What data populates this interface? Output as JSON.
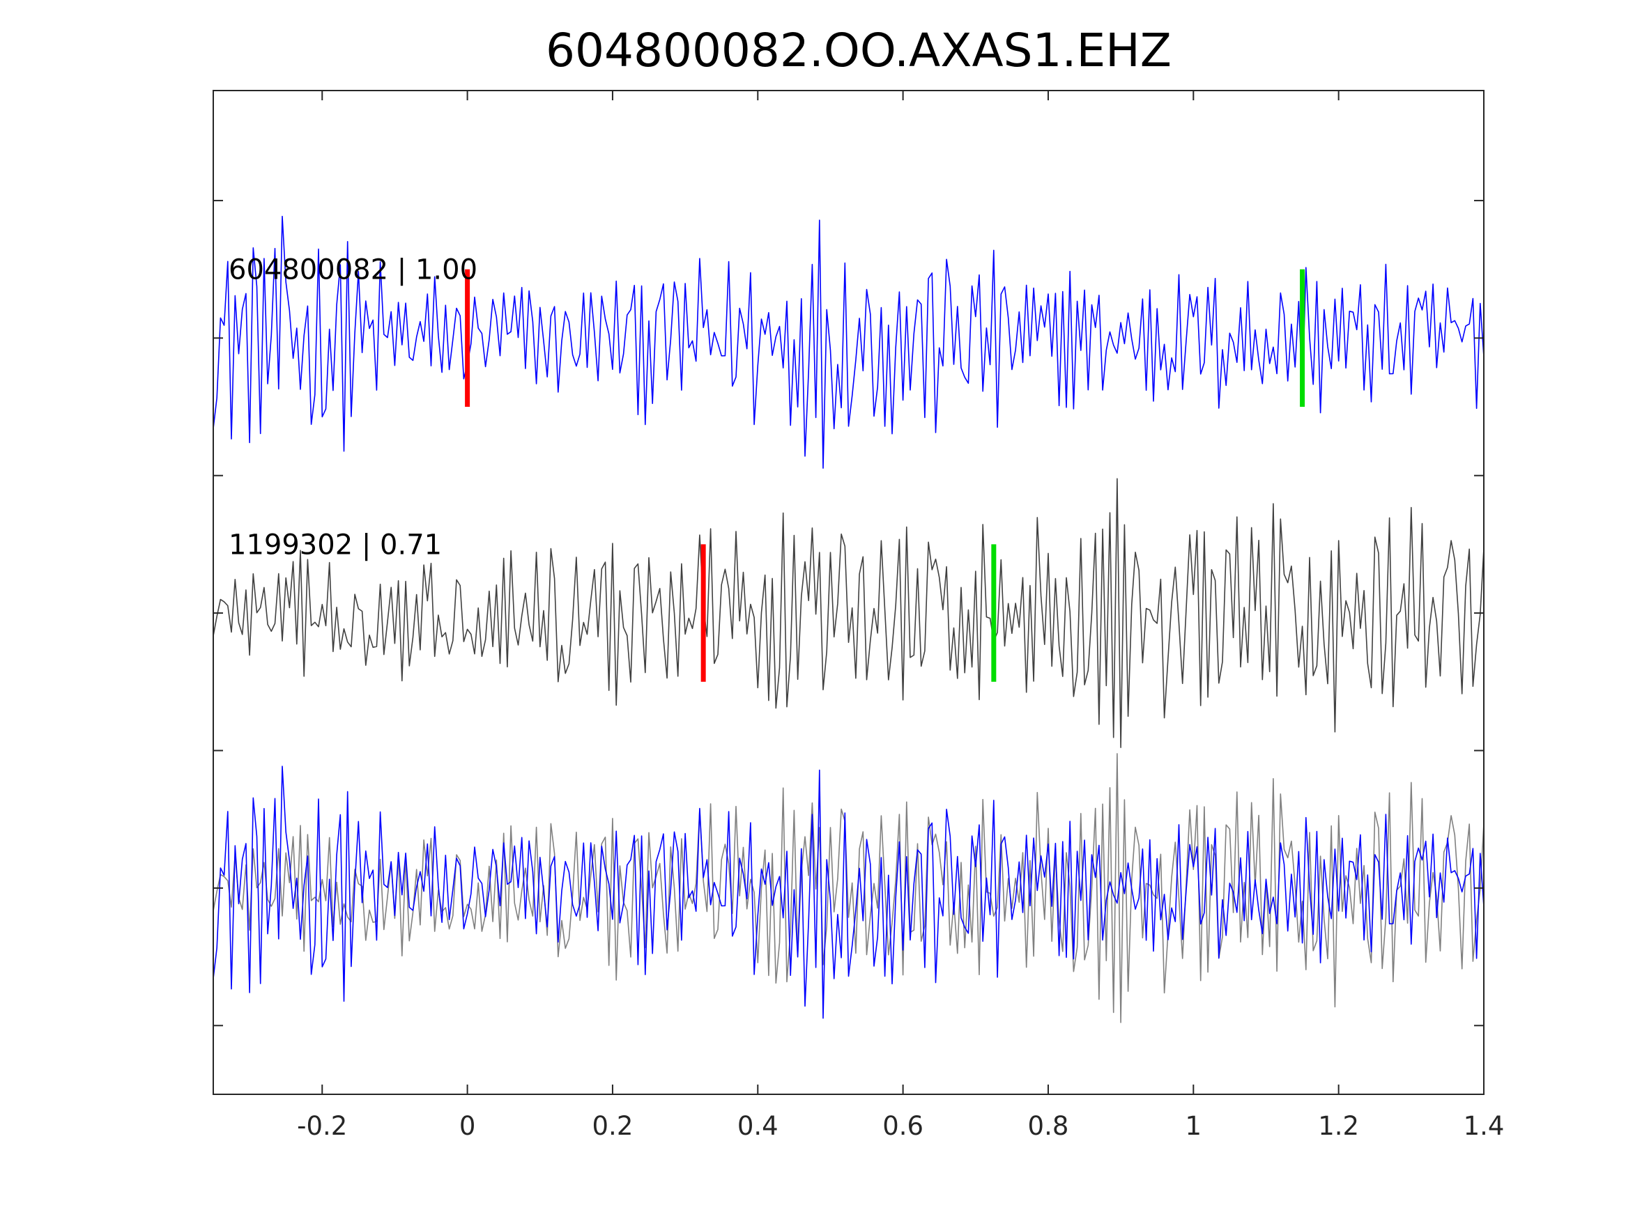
{
  "chart_data": {
    "type": "line",
    "title": "604800082.OO.AXAS1.EHZ",
    "xlabel": "",
    "ylabel": "",
    "xlim": [
      -0.35,
      1.4
    ],
    "ylim": [
      0,
      7.3
    ],
    "x_ticks": [
      -0.2,
      0,
      0.2,
      0.4,
      0.6,
      0.8,
      1,
      1.2,
      1.4
    ],
    "x_tick_labels": [
      "-0.2",
      "0",
      "0.2",
      "0.4",
      "0.6",
      "0.8",
      "1",
      "1.2",
      "1.4"
    ],
    "y_ticks": [
      0.5,
      1,
      1.5,
      2,
      2.5,
      3,
      3.5,
      4,
      4.5,
      5,
      5.5,
      6,
      6.5,
      7
    ],
    "y_tick_labels_visible": false,
    "grid": false,
    "legend": "none",
    "dt": 0.005,
    "traces": [
      {
        "label": "604800082 | 1.00",
        "baseline": 5.5,
        "color": "#0000ff",
        "p_pick_x": 0.0,
        "s_pick_x": 1.15,
        "envelope": [
          [
            -0.35,
            0.85
          ],
          [
            -0.2,
            1.0
          ],
          [
            -0.1,
            0.5
          ],
          [
            0.2,
            0.5
          ],
          [
            0.3,
            0.65
          ],
          [
            0.48,
            0.9
          ],
          [
            0.7,
            0.85
          ],
          [
            0.8,
            0.45
          ],
          [
            1.0,
            0.55
          ],
          [
            1.2,
            0.55
          ],
          [
            1.4,
            0.55
          ]
        ]
      },
      {
        "label": "1199302 | 0.71",
        "baseline": 3.5,
        "color": "#404040",
        "p_pick_x": 0.325,
        "s_pick_x": 0.725,
        "envelope": [
          [
            -0.35,
            0.25
          ],
          [
            -0.25,
            0.45
          ],
          [
            -0.1,
            0.5
          ],
          [
            0.0,
            0.4
          ],
          [
            0.15,
            0.75
          ],
          [
            0.35,
            0.75
          ],
          [
            0.5,
            0.9
          ],
          [
            0.7,
            0.6
          ],
          [
            0.85,
            0.85
          ],
          [
            1.0,
            0.85
          ],
          [
            1.2,
            0.95
          ],
          [
            1.4,
            0.75
          ]
        ]
      }
    ],
    "overlay": {
      "baseline": 1.5,
      "series": [
        {
          "source": "1199302",
          "color": "#808080"
        },
        {
          "source": "604800082",
          "color": "#0000ff"
        }
      ]
    },
    "pick_colors": {
      "p": "#ff0000",
      "s": "#00dd00"
    },
    "picks_relative_to": "first-trace-p-pick"
  }
}
